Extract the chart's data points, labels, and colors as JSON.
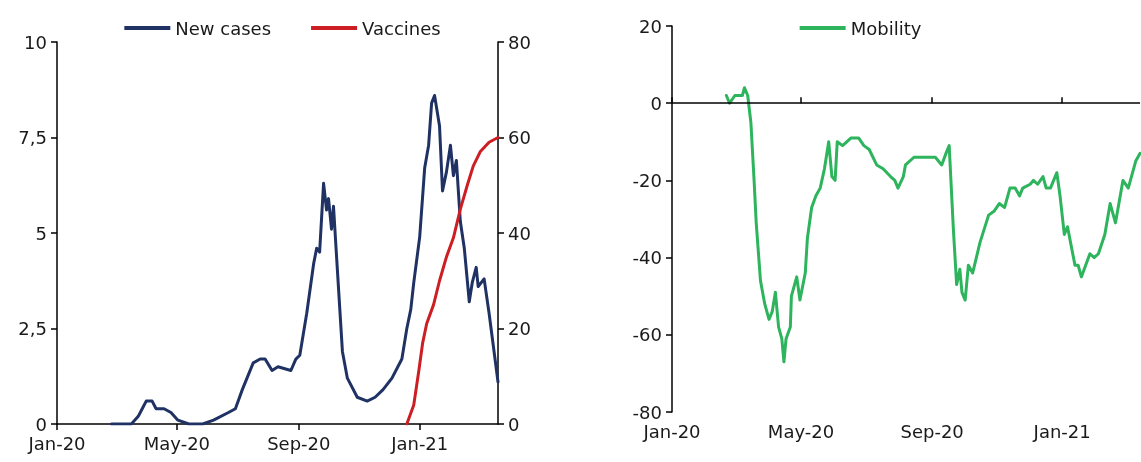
{
  "chart_data": [
    {
      "type": "line",
      "legend": "top",
      "marker": "none",
      "grid": false,
      "xlim": [
        "2020-01-01",
        "2021-03-21"
      ],
      "xticks": [
        {
          "value": "2020-01-01",
          "label": "Jan-20"
        },
        {
          "value": "2020-05-01",
          "label": "May-20"
        },
        {
          "value": "2020-09-01",
          "label": "Sep-20"
        },
        {
          "value": "2021-01-01",
          "label": "Jan-21"
        }
      ],
      "ylim": [
        0,
        10
      ],
      "yticks": [
        0,
        {
          "value": 2.5,
          "label": "2,5"
        },
        5,
        {
          "value": 7.5,
          "label": "7,5"
        },
        10
      ],
      "y2lim": [
        0,
        80
      ],
      "y2ticks": [
        0,
        20,
        40,
        60,
        80
      ],
      "series": [
        {
          "name": "New cases",
          "color": "#1f3263",
          "x": [
            "2020-02-25",
            "2020-03-16",
            "2020-03-23",
            "2020-03-27",
            "2020-03-31",
            "2020-04-06",
            "2020-04-10",
            "2020-04-18",
            "2020-04-25",
            "2020-05-02",
            "2020-05-13",
            "2020-05-27",
            "2020-06-07",
            "2020-06-22",
            "2020-06-29",
            "2020-07-06",
            "2020-07-17",
            "2020-07-24",
            "2020-07-29",
            "2020-08-05",
            "2020-08-11",
            "2020-08-24",
            "2020-08-29",
            "2020-09-02",
            "2020-09-09",
            "2020-09-16",
            "2020-09-19",
            "2020-09-22",
            "2020-09-26",
            "2020-09-29",
            "2020-10-01",
            "2020-10-04",
            "2020-10-06",
            "2020-10-10",
            "2020-10-15",
            "2020-10-20",
            "2020-10-30",
            "2020-11-09",
            "2020-11-17",
            "2020-11-25",
            "2020-12-04",
            "2020-12-14",
            "2020-12-19",
            "2020-12-23",
            "2020-12-26",
            "2021-01-01",
            "2021-01-06",
            "2021-01-10",
            "2021-01-13",
            "2021-01-16",
            "2021-01-21",
            "2021-01-24",
            "2021-01-28",
            "2021-02-01",
            "2021-02-04",
            "2021-02-07",
            "2021-02-11",
            "2021-02-15",
            "2021-02-20",
            "2021-02-23",
            "2021-02-27",
            "2021-03-01",
            "2021-03-07",
            "2021-03-12",
            "2021-03-18",
            "2021-03-21"
          ],
          "values": [
            0,
            0,
            0.2,
            0.4,
            0.6,
            0.6,
            0.4,
            0.4,
            0.3,
            0.1,
            0,
            0,
            0.1,
            0.3,
            0.4,
            0.9,
            1.6,
            1.7,
            1.7,
            1.4,
            1.5,
            1.4,
            1.7,
            1.8,
            2.9,
            4.2,
            4.6,
            4.5,
            6.3,
            5.6,
            5.9,
            5.1,
            5.7,
            4,
            1.9,
            1.2,
            0.7,
            0.6,
            0.7,
            0.9,
            1.2,
            1.7,
            2.5,
            3,
            3.7,
            4.9,
            6.7,
            7.3,
            8.4,
            8.6,
            7.8,
            6.1,
            6.6,
            7.3,
            6.5,
            6.9,
            5.3,
            4.6,
            3.2,
            3.7,
            4.1,
            3.6,
            3.8,
            2.9,
            1.7,
            1.1
          ]
        },
        {
          "name": "Vaccines",
          "color": "#cc1f24",
          "axis": "y2",
          "x": [
            "2020-12-19",
            "2020-12-26",
            "2020-12-31",
            "2021-01-04",
            "2021-01-08",
            "2021-01-15",
            "2021-01-21",
            "2021-01-28",
            "2021-02-04",
            "2021-02-11",
            "2021-02-18",
            "2021-02-24",
            "2021-03-03",
            "2021-03-12",
            "2021-03-21"
          ],
          "values": [
            0,
            4,
            11,
            17,
            21,
            25,
            30,
            35,
            39,
            45,
            50,
            54,
            57,
            59,
            60
          ]
        }
      ]
    },
    {
      "type": "line",
      "legend": "top",
      "marker": "none",
      "grid": false,
      "xlim": [
        "2020-01-01",
        "2021-03-15"
      ],
      "xticks": [
        {
          "value": "2020-01-01",
          "label": "Jan-20"
        },
        {
          "value": "2020-05-01",
          "label": "May-20"
        },
        {
          "value": "2020-09-01",
          "label": "Sep-20"
        },
        {
          "value": "2021-01-01",
          "label": "Jan-21"
        }
      ],
      "ylim": [
        -80,
        20
      ],
      "yticks": [
        -80,
        -60,
        -40,
        -20,
        0,
        20
      ],
      "ref_lines": [
        {
          "axis": "y",
          "value": 0,
          "color": "#000000"
        }
      ],
      "series": [
        {
          "name": "Mobility",
          "color": "#2db45c",
          "x": [
            "2020-02-21",
            "2020-02-24",
            "2020-02-29",
            "2020-03-04",
            "2020-03-07",
            "2020-03-09",
            "2020-03-12",
            "2020-03-15",
            "2020-03-18",
            "2020-03-20",
            "2020-03-24",
            "2020-03-28",
            "2020-04-01",
            "2020-04-04",
            "2020-04-07",
            "2020-04-10",
            "2020-04-13",
            "2020-04-15",
            "2020-04-17",
            "2020-04-21",
            "2020-04-22",
            "2020-04-25",
            "2020-04-27",
            "2020-04-30",
            "2020-05-05",
            "2020-05-07",
            "2020-05-11",
            "2020-05-15",
            "2020-05-19",
            "2020-05-23",
            "2020-05-27",
            "2020-05-30",
            "2020-06-02",
            "2020-06-04",
            "2020-06-09",
            "2020-06-17",
            "2020-06-24",
            "2020-06-29",
            "2020-07-04",
            "2020-07-11",
            "2020-07-17",
            "2020-07-24",
            "2020-07-28",
            "2020-07-31",
            "2020-08-05",
            "2020-08-07",
            "2020-08-15",
            "2020-08-28",
            "2020-09-04",
            "2020-09-10",
            "2020-09-14",
            "2020-09-17",
            "2020-09-21",
            "2020-09-24",
            "2020-09-27",
            "2020-09-29",
            "2020-10-02",
            "2020-10-05",
            "2020-10-09",
            "2020-10-16",
            "2020-10-24",
            "2020-10-29",
            "2020-11-03",
            "2020-11-08",
            "2020-11-13",
            "2020-11-18",
            "2020-11-22",
            "2020-11-25",
            "2020-12-02",
            "2020-12-05",
            "2020-12-09",
            "2020-12-14",
            "2020-12-17",
            "2020-12-21",
            "2020-12-27",
            "2020-12-30",
            "2021-01-03",
            "2021-01-06",
            "2021-01-13",
            "2021-01-16",
            "2021-01-19",
            "2021-01-27",
            "2021-01-31",
            "2021-02-04",
            "2021-02-10",
            "2021-02-15",
            "2021-02-20",
            "2021-02-27",
            "2021-03-04",
            "2021-03-11",
            "2021-03-15"
          ],
          "values": [
            2,
            0,
            2,
            2,
            2,
            4,
            2,
            -5,
            -20,
            -31,
            -46,
            -52,
            -56,
            -54,
            -49,
            -58,
            -61,
            -67,
            -61,
            -58,
            -50,
            -47,
            -45,
            -51,
            -44,
            -35,
            -27,
            -24,
            -22,
            -17,
            -10,
            -19,
            -20,
            -10,
            -11,
            -9,
            -9,
            -11,
            -12,
            -16,
            -17,
            -19,
            -20,
            -22,
            -19,
            -16,
            -14,
            -14,
            -14,
            -16,
            -13,
            -11,
            -33,
            -47,
            -43,
            -49,
            -51,
            -42,
            -44,
            -36,
            -29,
            -28,
            -26,
            -27,
            -22,
            -22,
            -24,
            -22,
            -21,
            -20,
            -21,
            -19,
            -22,
            -22,
            -18,
            -24,
            -34,
            -32,
            -42,
            -42,
            -45,
            -39,
            -40,
            -39,
            -34,
            -26,
            -31,
            -20,
            -22,
            -15,
            -13
          ]
        }
      ]
    }
  ]
}
